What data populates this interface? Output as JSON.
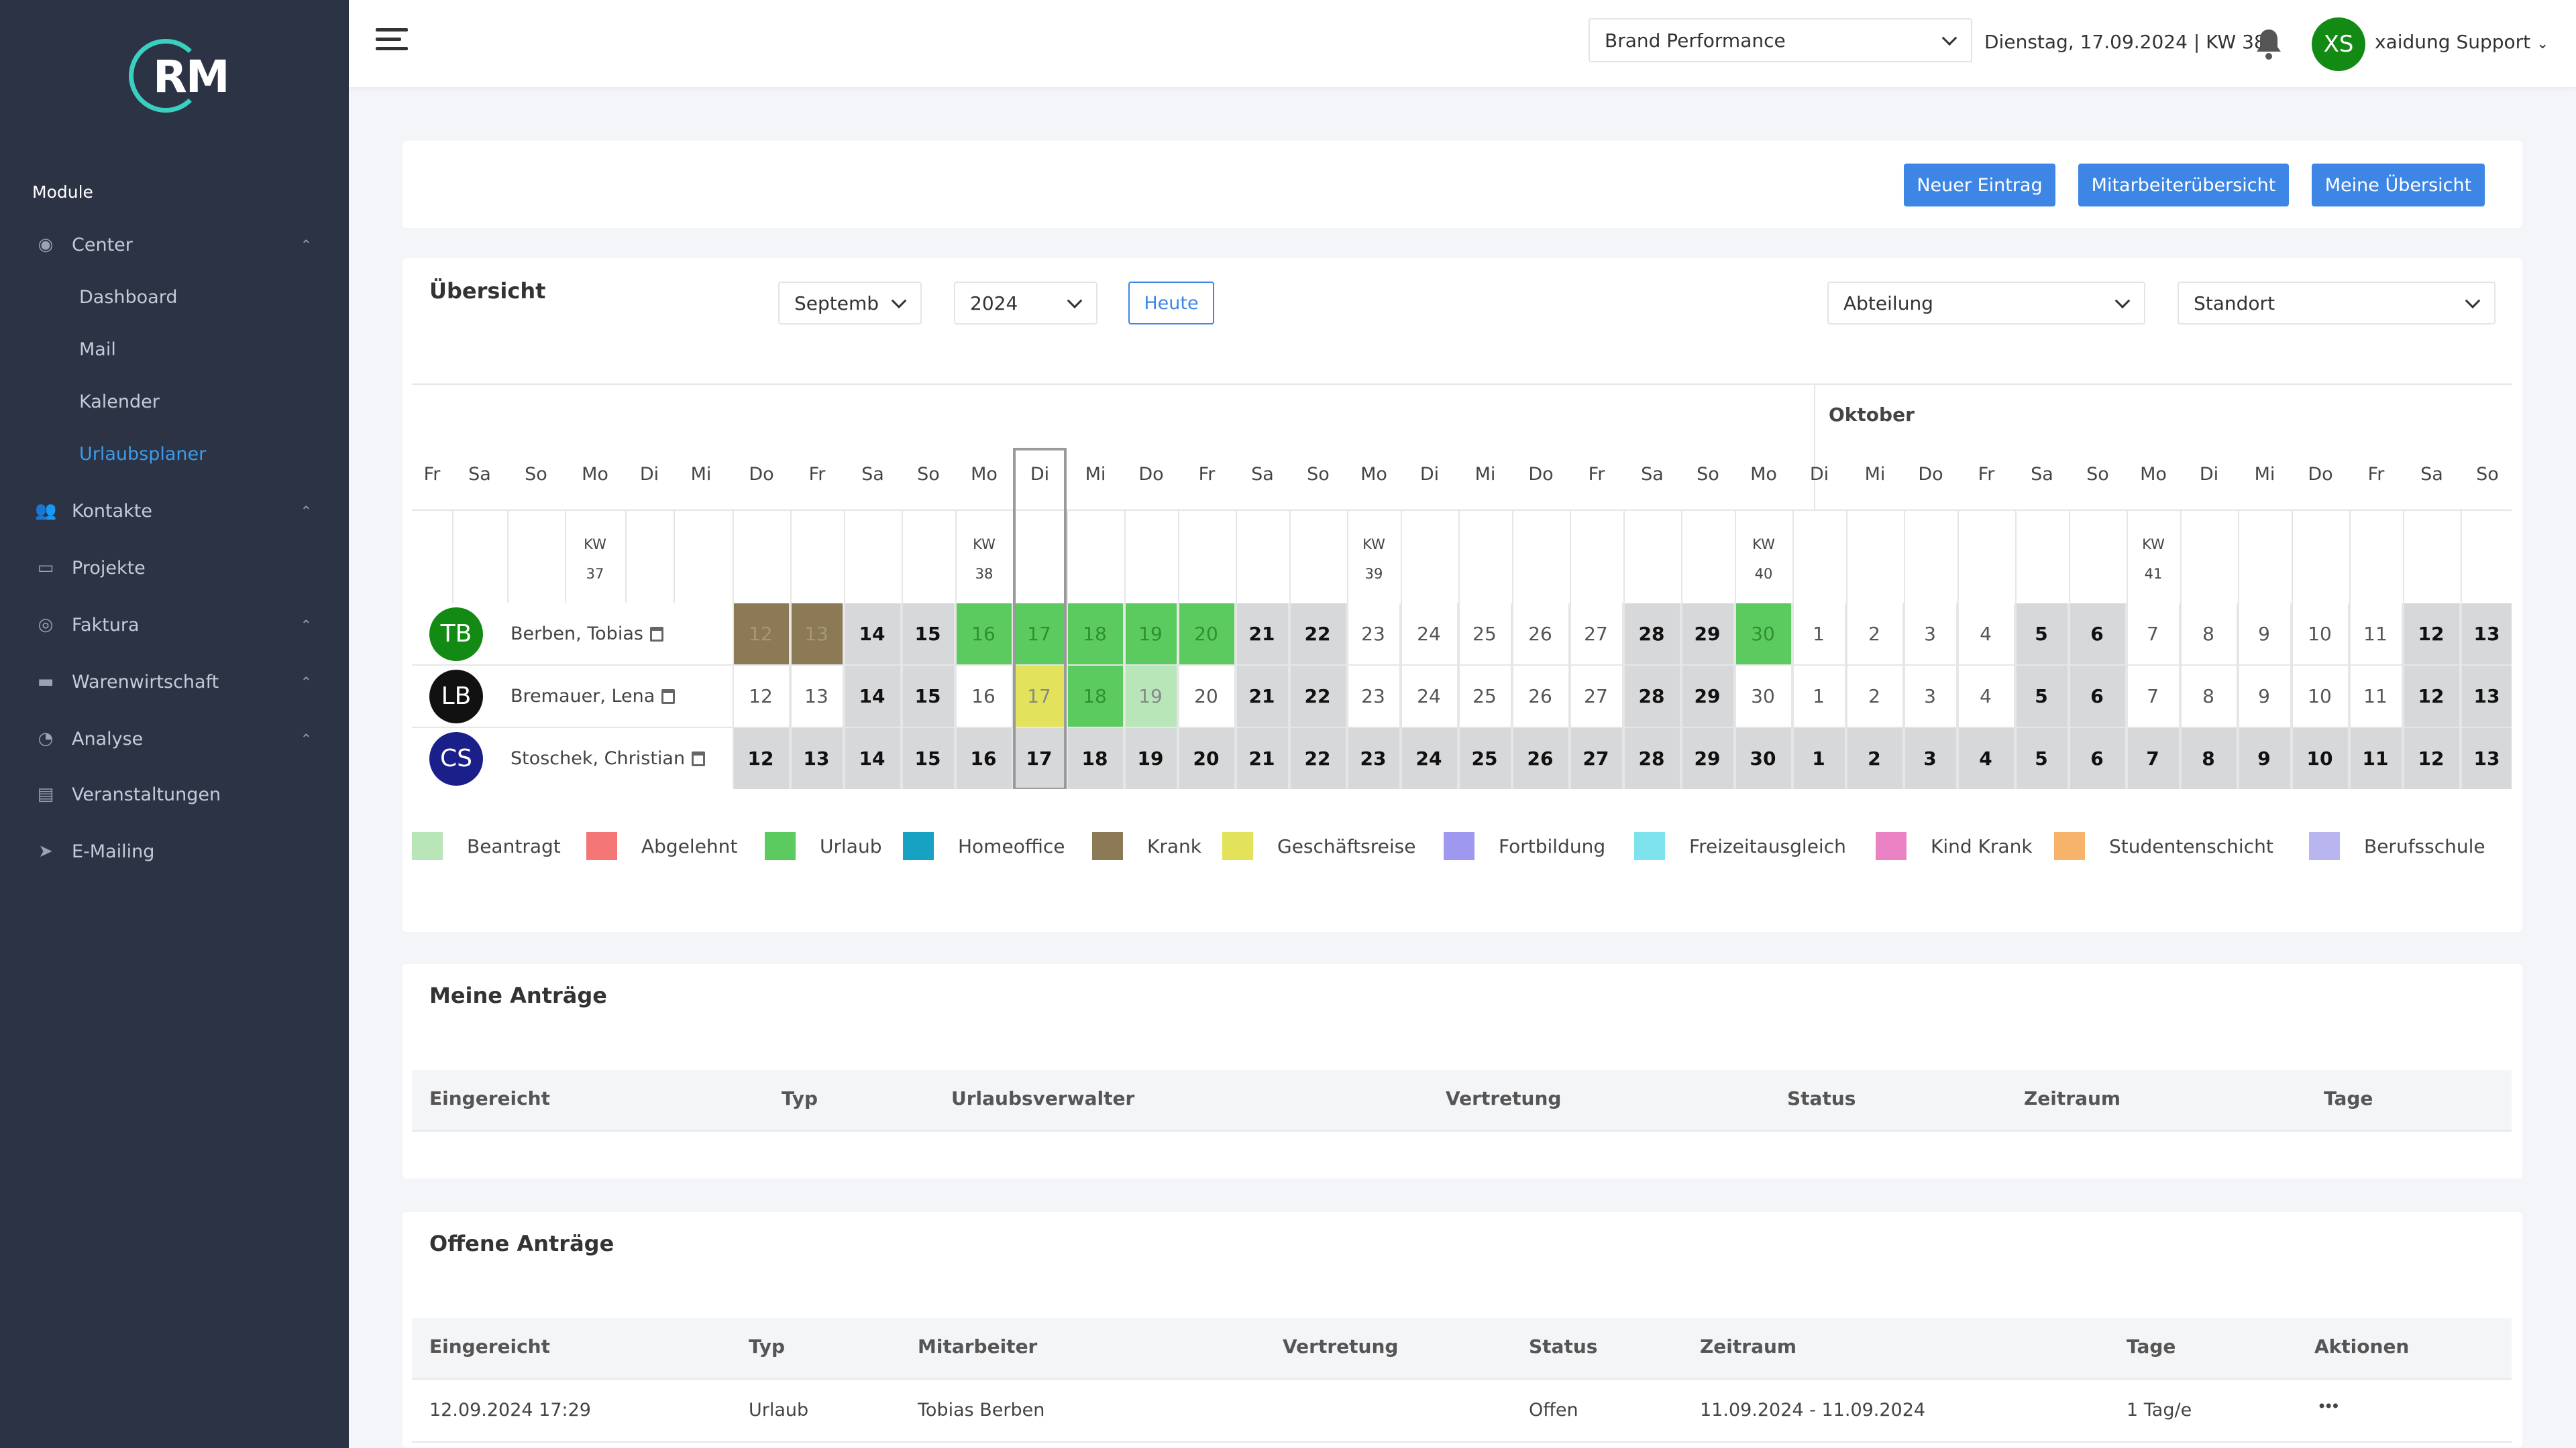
{
  "brand": {
    "logo_text": "RM"
  },
  "sidebar": {
    "section_title": "Module",
    "items": [
      {
        "label": "Center",
        "icon": "palette-icon",
        "expandable": true
      },
      {
        "label": "Kontakte",
        "icon": "users-icon",
        "expandable": true
      },
      {
        "label": "Projekte",
        "icon": "monitor-icon",
        "expandable": false
      },
      {
        "label": "Faktura",
        "icon": "coins-icon",
        "expandable": true
      },
      {
        "label": "Warenwirtschaft",
        "icon": "truck-icon",
        "expandable": true
      },
      {
        "label": "Analyse",
        "icon": "pie-chart-icon",
        "expandable": true
      },
      {
        "label": "Veranstaltungen",
        "icon": "ticket-icon",
        "expandable": false
      },
      {
        "label": "E-Mailing",
        "icon": "paper-plane-icon",
        "expandable": false
      }
    ],
    "center_sub": [
      "Dashboard",
      "Mail",
      "Kalender",
      "Urlaubsplaner"
    ],
    "active_sub": "Urlaubsplaner"
  },
  "topbar": {
    "company_select": "Brand Performance",
    "date_text": "Dienstag, 17.09.2024 | KW 38",
    "user_initials": "XS",
    "user_name": "xaidung Support"
  },
  "actions": {
    "new_entry": "Neuer Eintrag",
    "employee_overview": "Mitarbeiterübersicht",
    "my_overview": "Meine Übersicht"
  },
  "overview": {
    "title": "Übersicht",
    "month_select": "Septemb",
    "year_select": "2024",
    "today_button": "Heute",
    "department_select": "Abteilung",
    "location_select": "Standort",
    "month_label_oct": "Oktober",
    "kw_prefix": "KW"
  },
  "calendar": {
    "left_days": [
      {
        "dn": "Fr"
      },
      {
        "dn": "Sa"
      },
      {
        "dn": "So"
      },
      {
        "dn": "Mo",
        "kw": "37"
      },
      {
        "dn": "Di"
      },
      {
        "dn": "Mi"
      }
    ],
    "days": [
      {
        "dn": "Do"
      },
      {
        "dn": "Fr"
      },
      {
        "dn": "Sa"
      },
      {
        "dn": "So"
      },
      {
        "dn": "Mo",
        "kw": "38"
      },
      {
        "dn": "Di"
      },
      {
        "dn": "Mi"
      },
      {
        "dn": "Do"
      },
      {
        "dn": "Fr"
      },
      {
        "dn": "Sa"
      },
      {
        "dn": "So"
      },
      {
        "dn": "Mo",
        "kw": "39"
      },
      {
        "dn": "Di"
      },
      {
        "dn": "Mi"
      },
      {
        "dn": "Do"
      },
      {
        "dn": "Fr"
      },
      {
        "dn": "Sa"
      },
      {
        "dn": "So"
      },
      {
        "dn": "Mo",
        "kw": "40"
      },
      {
        "dn": "Di"
      },
      {
        "dn": "Mi"
      },
      {
        "dn": "Do"
      },
      {
        "dn": "Fr"
      },
      {
        "dn": "Sa"
      },
      {
        "dn": "So"
      },
      {
        "dn": "Mo",
        "kw": "41"
      },
      {
        "dn": "Di"
      },
      {
        "dn": "Mi"
      },
      {
        "dn": "Do"
      },
      {
        "dn": "Fr"
      },
      {
        "dn": "Sa"
      },
      {
        "dn": "So"
      }
    ],
    "dates": [
      "12",
      "13",
      "14",
      "15",
      "16",
      "17",
      "18",
      "19",
      "20",
      "21",
      "22",
      "23",
      "24",
      "25",
      "26",
      "27",
      "28",
      "29",
      "30",
      "1",
      "2",
      "3",
      "4",
      "5",
      "6",
      "7",
      "8",
      "9",
      "10",
      "11",
      "12",
      "13"
    ],
    "weekend_index": [
      2,
      3,
      9,
      10,
      16,
      17,
      23,
      24,
      30,
      31
    ],
    "today_index": 5,
    "employees": [
      {
        "initials": "TB",
        "name": "Berben, Tobias",
        "color": "#138a13",
        "status": {
          "0": "krank",
          "1": "krank",
          "4": "urlaub",
          "5": "urlaub",
          "6": "urlaub",
          "7": "urlaub",
          "8": "urlaub",
          "18": "urlaub"
        }
      },
      {
        "initials": "LB",
        "name": "Bremauer, Lena",
        "color": "#111111",
        "status": {
          "5": "geschaeftsreise",
          "6": "urlaub",
          "7": "beantragt"
        }
      },
      {
        "initials": "CS",
        "name": "Stoschek, Christian",
        "color": "#1a1f8a",
        "all_grey": true,
        "status": {}
      }
    ]
  },
  "legend": [
    {
      "label": "Beantragt",
      "color": "#b9e6b8"
    },
    {
      "label": "Abgelehnt",
      "color": "#f47676"
    },
    {
      "label": "Urlaub",
      "color": "#5ccb5f"
    },
    {
      "label": "Homeoffice",
      "color": "#17a2c4"
    },
    {
      "label": "Krank",
      "color": "#8b7a55"
    },
    {
      "label": "Geschäftsreise",
      "color": "#e2e35a"
    },
    {
      "label": "Fortbildung",
      "color": "#9e98ee"
    },
    {
      "label": "Freizeitausgleich",
      "color": "#7fe3ee"
    },
    {
      "label": "Kind Krank",
      "color": "#ea82c3"
    },
    {
      "label": "Studentenschicht",
      "color": "#f8b36a"
    },
    {
      "label": "Berufsschule",
      "color": "#b8b5ef"
    }
  ],
  "my_requests": {
    "title": "Meine Anträge",
    "columns": [
      "Eingereicht",
      "Typ",
      "Urlaubsverwalter",
      "Vertretung",
      "Status",
      "Zeitraum",
      "Tage"
    ]
  },
  "open_requests": {
    "title": "Offene Anträge",
    "columns": [
      "Eingereicht",
      "Typ",
      "Mitarbeiter",
      "Vertretung",
      "Status",
      "Zeitraum",
      "Tage",
      "Aktionen"
    ],
    "rows": [
      {
        "submitted": "12.09.2024 17:29",
        "type": "Urlaub",
        "employee": "Tobias Berben",
        "substitute": "",
        "status": "Offen",
        "period": "11.09.2024 - 11.09.2024",
        "days": "1 Tag/e",
        "actions": "•••"
      }
    ]
  }
}
